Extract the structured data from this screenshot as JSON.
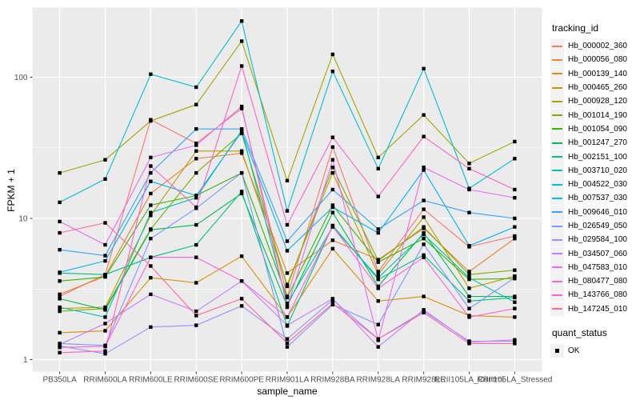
{
  "figure": {
    "background": "#FFFFFF",
    "panel_background": "#EBEBEB",
    "grid_major_color": "#FFFFFF",
    "grid_minor_color": "#FFFFFF",
    "tick_label_color": "#4D4D4D",
    "tick_mark_color": "#333333",
    "point_color": "#000000"
  },
  "chart_data": {
    "type": "line",
    "title": "",
    "xlabel": "sample_name",
    "ylabel": "FPKM + 1",
    "y_scale": "log10",
    "y_ticks": [
      1,
      10,
      100
    ],
    "y_minor": [
      3.1623,
      31.623
    ],
    "ylim": [
      0.82,
      310
    ],
    "grid": true,
    "legend_position": "right",
    "point_shape": "filled-square",
    "categories": [
      "PB350LA",
      "RRIM600LA",
      "RRIM600LE",
      "RRIM600SE",
      "RRIM600PE",
      "RRIM901LA",
      "RRIM928BA",
      "RRIM928LA",
      "RRIM928LE",
      "RRII105LA_Control",
      "RRII105LA_Stressed"
    ],
    "legend_title": "tracking_id",
    "series": [
      {
        "name": "Hb_000002_360",
        "color": "#F8766D",
        "values": [
          2.8,
          4.0,
          50,
          34,
          60,
          2.8,
          32,
          4.2,
          11.6,
          6.3,
          7.5
        ]
      },
      {
        "name": "Hb_000056_080",
        "color": "#EA8331",
        "values": [
          2.9,
          3.9,
          15,
          26.5,
          29,
          4.1,
          7.0,
          5.1,
          8.5,
          4.2,
          7.2
        ]
      },
      {
        "name": "Hb_000139_140",
        "color": "#D89000",
        "values": [
          1.55,
          1.6,
          3.8,
          3.5,
          5.4,
          2.0,
          6.1,
          2.6,
          2.8,
          2.05,
          2.0
        ]
      },
      {
        "name": "Hb_000465_260",
        "color": "#C09B00",
        "values": [
          2.3,
          2.35,
          10.5,
          30,
          30,
          3.4,
          21,
          4.0,
          10.2,
          3.2,
          3.9
        ]
      },
      {
        "name": "Hb_000928_120",
        "color": "#A3A500",
        "values": [
          21,
          26,
          49,
          64,
          180,
          18.5,
          145,
          27,
          54,
          24.5,
          35
        ]
      },
      {
        "name": "Hb_001014_190",
        "color": "#7CAE00",
        "values": [
          2.2,
          2.3,
          8.4,
          21,
          40,
          3.3,
          23,
          5.0,
          8.7,
          4.0,
          4.3
        ]
      },
      {
        "name": "Hb_001054_090",
        "color": "#39B600",
        "values": [
          3.6,
          3.85,
          12.4,
          14.5,
          21,
          2.75,
          12.4,
          4.9,
          7.2,
          3.7,
          3.75
        ]
      },
      {
        "name": "Hb_001247_270",
        "color": "#00BB4E",
        "values": [
          2.7,
          2.25,
          8.3,
          9.0,
          15,
          2.4,
          11,
          3.3,
          7.9,
          2.8,
          2.8
        ]
      },
      {
        "name": "Hb_002151_100",
        "color": "#00C087",
        "values": [
          4.1,
          4.0,
          5.3,
          6.5,
          15.5,
          1.73,
          8.9,
          3.7,
          5.5,
          2.6,
          2.75
        ]
      },
      {
        "name": "Hb_003710_020",
        "color": "#00C0B2",
        "values": [
          2.35,
          2.0,
          11,
          14,
          42,
          2.5,
          8.7,
          3.8,
          7.7,
          3.8,
          2.55
        ]
      },
      {
        "name": "Hb_004522_030",
        "color": "#00BDD3",
        "values": [
          13,
          19,
          105,
          85,
          250,
          11.3,
          110,
          22.5,
          115,
          16.3,
          26.5
        ]
      },
      {
        "name": "Hb_007537_030",
        "color": "#00B4EF",
        "values": [
          4.15,
          5.0,
          18.3,
          14.5,
          41,
          5.9,
          12,
          7.9,
          22,
          6.4,
          8.7
        ]
      },
      {
        "name": "Hb_009646_010",
        "color": "#35A2FF",
        "values": [
          6.0,
          5.45,
          21,
          43,
          43,
          6.9,
          16,
          8.4,
          13.4,
          11,
          10
        ]
      },
      {
        "name": "Hb_026549_050",
        "color": "#7C96FF",
        "values": [
          1.3,
          1.26,
          7.2,
          11.8,
          21,
          1.23,
          2.45,
          1.77,
          6.55,
          2.3,
          3.8
        ]
      },
      {
        "name": "Hb_029584_100",
        "color": "#9590FF",
        "values": [
          1.25,
          1.1,
          1.7,
          1.75,
          2.4,
          1.4,
          2.65,
          1.4,
          2.2,
          1.35,
          1.35
        ]
      },
      {
        "name": "Hb_034507_060",
        "color": "#C77CFF",
        "values": [
          1.28,
          1.8,
          2.9,
          2.2,
          3.6,
          1.75,
          2.7,
          1.23,
          2.25,
          1.33,
          1.38
        ]
      },
      {
        "name": "Hb_047583_010",
        "color": "#E76BF3",
        "values": [
          9.5,
          6.5,
          27,
          33,
          62,
          2.35,
          26,
          1.37,
          23,
          16,
          14
        ]
      },
      {
        "name": "Hb_080477_080",
        "color": "#FA62DB",
        "values": [
          1.22,
          1.24,
          5.3,
          5.3,
          3.6,
          2.0,
          8.8,
          3.2,
          5.3,
          2.0,
          2.3
        ]
      },
      {
        "name": "Hb_143766_080",
        "color": "#FF61C7",
        "values": [
          1.12,
          1.15,
          23.5,
          12,
          120,
          9.0,
          37.5,
          14.3,
          38,
          22.5,
          16
        ]
      },
      {
        "name": "Hb_147245_010",
        "color": "#FF689E",
        "values": [
          7.9,
          9.3,
          4.6,
          2.05,
          2.7,
          1.31,
          2.5,
          1.4,
          2.15,
          1.3,
          1.3
        ]
      }
    ],
    "legend2": {
      "title": "quant_status",
      "items": [
        {
          "label": "OK",
          "key": "black-square"
        }
      ]
    }
  }
}
